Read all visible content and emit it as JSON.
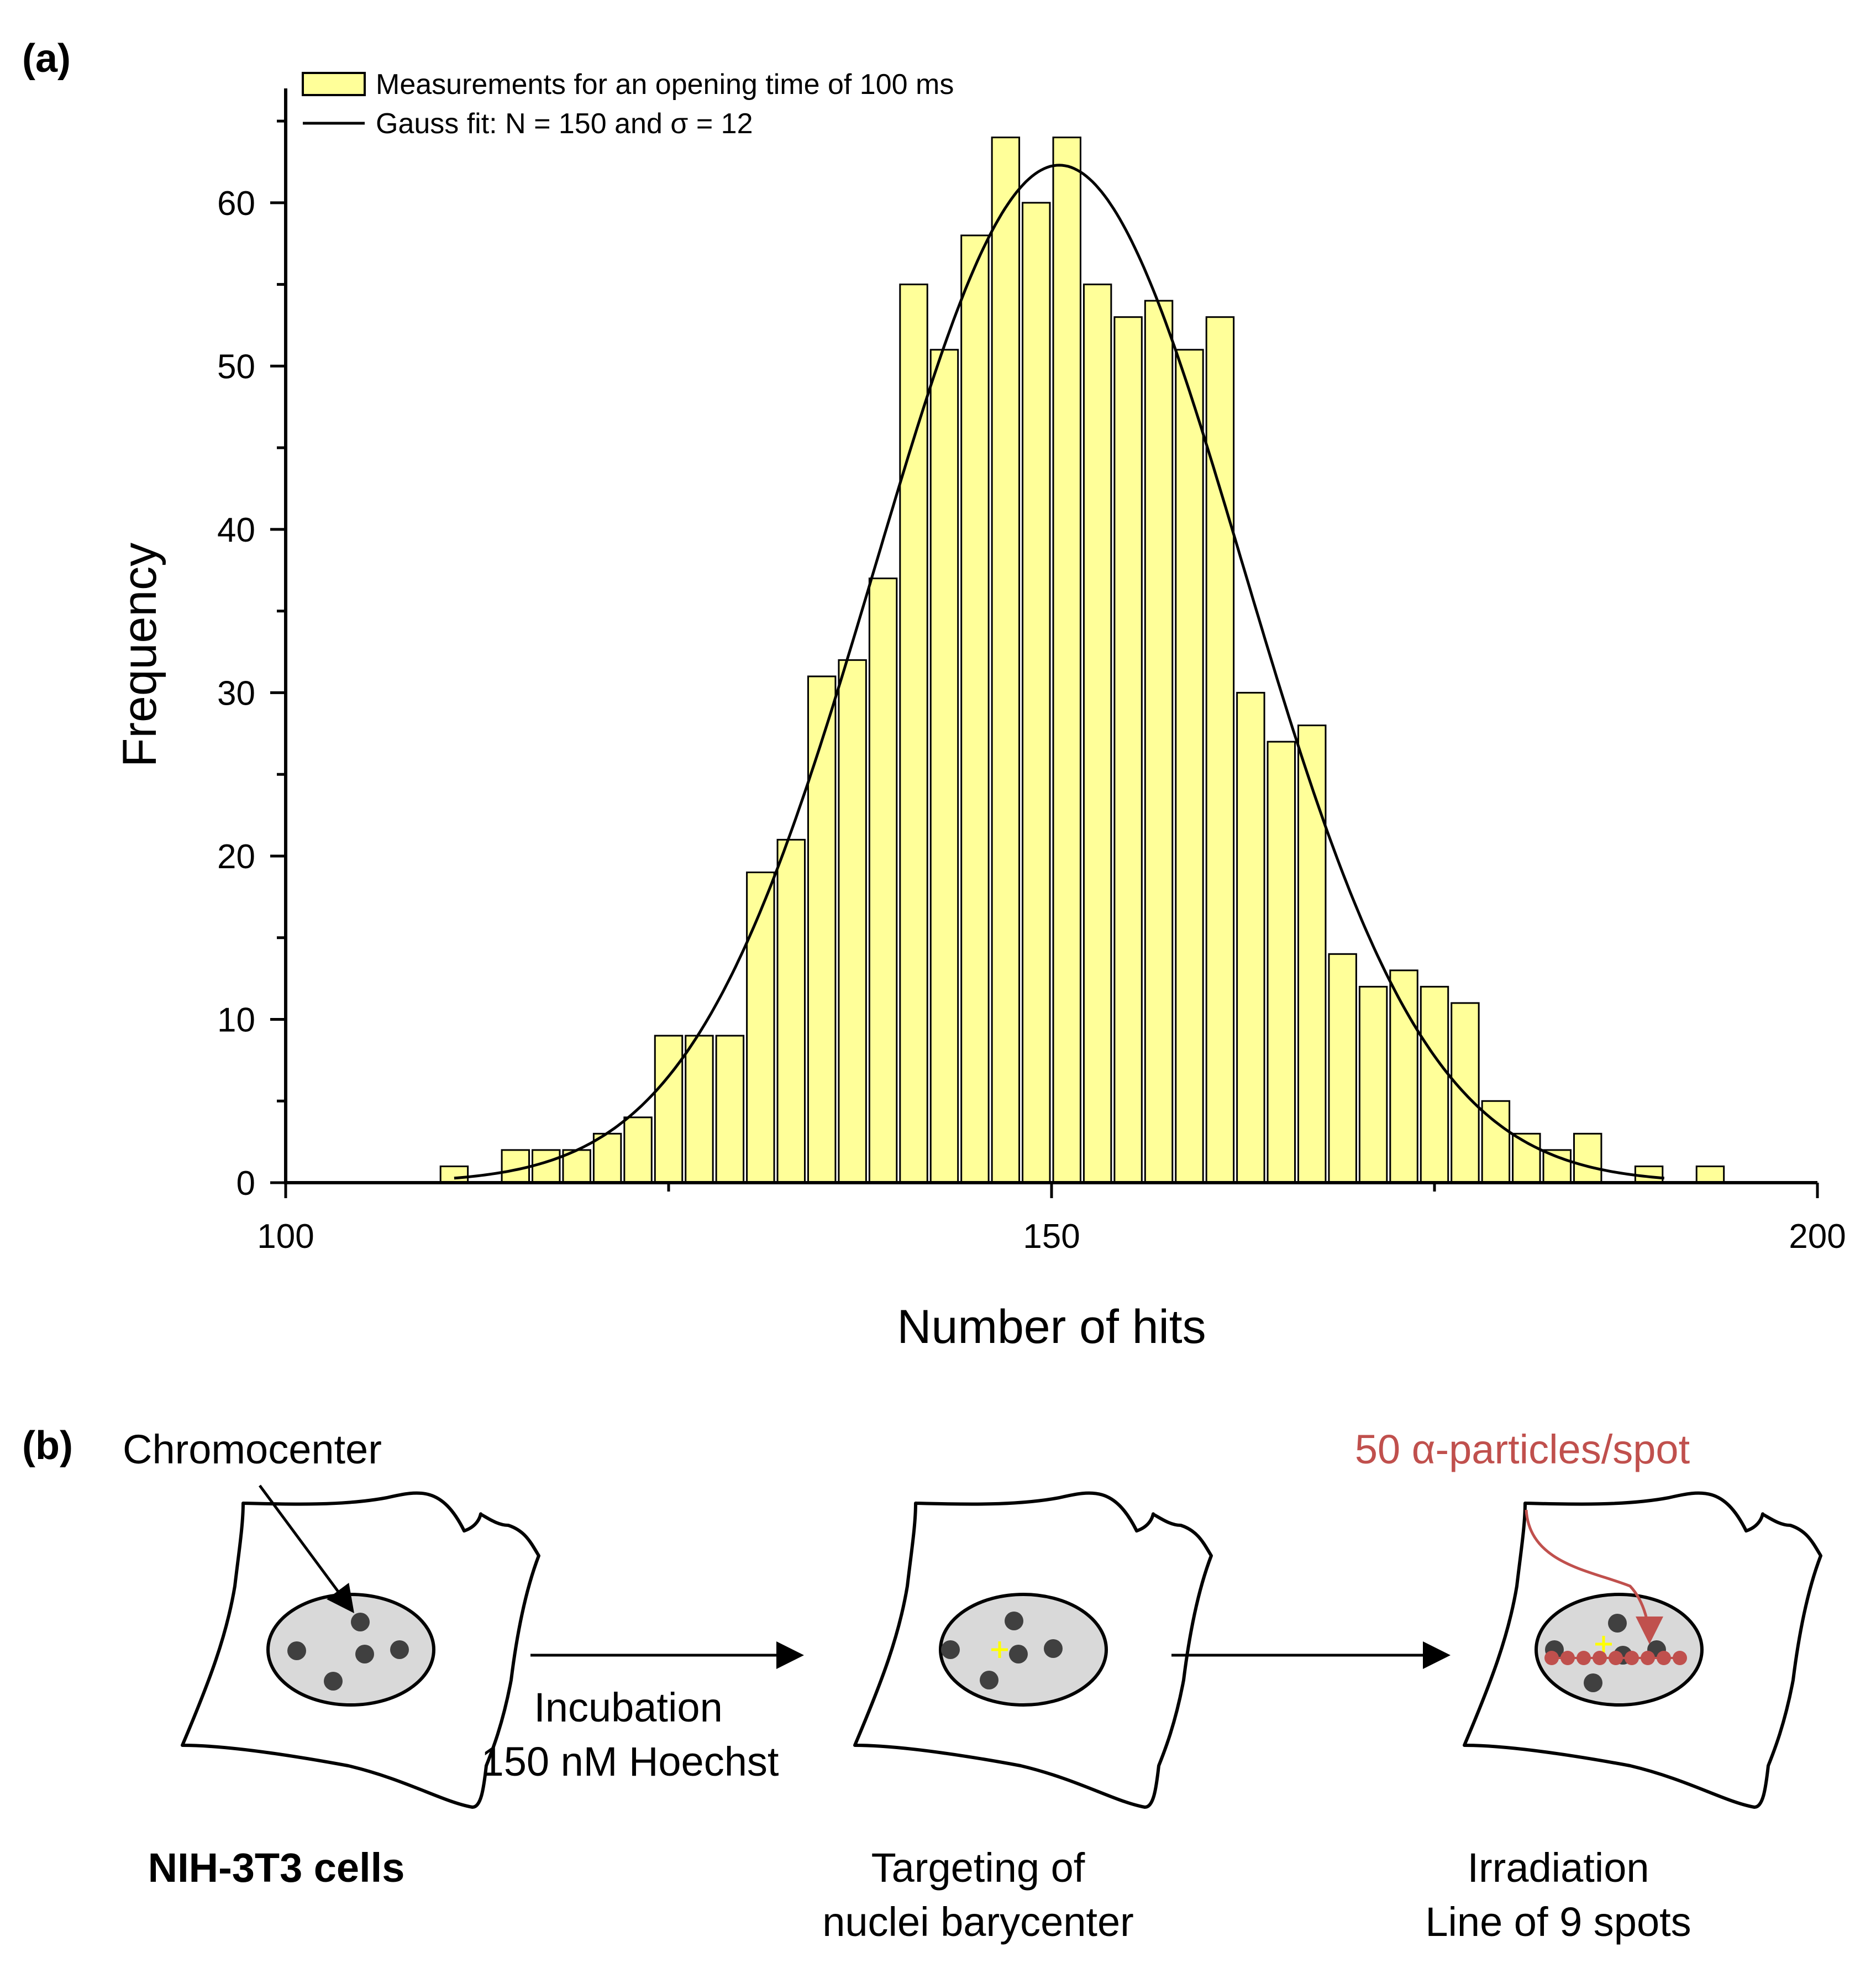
{
  "panel_a_label": "(a)",
  "panel_b_label": "(b)",
  "colors": {
    "bar_fill": "#FFFF99",
    "bar_stroke": "#000000",
    "fit_line": "#000000",
    "accent_red": "#C0504D",
    "target_cross": "#FFFF00",
    "nucleus_fill": "#D9D9D9",
    "chromocenter": "#404040"
  },
  "chart_data": {
    "type": "bar",
    "title": "",
    "xlabel": "Number of hits",
    "ylabel": "Frequency",
    "xlim": [
      100,
      200
    ],
    "ylim": [
      0,
      67
    ],
    "x_ticks": [
      100,
      150,
      200
    ],
    "y_ticks": [
      0,
      10,
      20,
      30,
      40,
      50,
      60
    ],
    "bin_width": 2,
    "legend": {
      "placement": "top-left",
      "bars_label": "Measurements for an opening time of 100 ms",
      "fit_label": "Gauss fit: N = 150 and σ = 12"
    },
    "bins": [
      {
        "x": 111,
        "value": 1
      },
      {
        "x": 115,
        "value": 2
      },
      {
        "x": 117,
        "value": 2
      },
      {
        "x": 119,
        "value": 2
      },
      {
        "x": 121,
        "value": 3
      },
      {
        "x": 123,
        "value": 4
      },
      {
        "x": 125,
        "value": 9
      },
      {
        "x": 127,
        "value": 9
      },
      {
        "x": 129,
        "value": 9
      },
      {
        "x": 131,
        "value": 19
      },
      {
        "x": 133,
        "value": 21
      },
      {
        "x": 135,
        "value": 31
      },
      {
        "x": 137,
        "value": 32
      },
      {
        "x": 139,
        "value": 37
      },
      {
        "x": 141,
        "value": 55
      },
      {
        "x": 143,
        "value": 51
      },
      {
        "x": 145,
        "value": 58
      },
      {
        "x": 147,
        "value": 64
      },
      {
        "x": 149,
        "value": 60
      },
      {
        "x": 151,
        "value": 64
      },
      {
        "x": 153,
        "value": 55
      },
      {
        "x": 155,
        "value": 53
      },
      {
        "x": 157,
        "value": 54
      },
      {
        "x": 159,
        "value": 51
      },
      {
        "x": 161,
        "value": 53
      },
      {
        "x": 163,
        "value": 30
      },
      {
        "x": 165,
        "value": 27
      },
      {
        "x": 167,
        "value": 28
      },
      {
        "x": 169,
        "value": 14
      },
      {
        "x": 171,
        "value": 12
      },
      {
        "x": 173,
        "value": 13
      },
      {
        "x": 175,
        "value": 12
      },
      {
        "x": 177,
        "value": 11
      },
      {
        "x": 179,
        "value": 5
      },
      {
        "x": 181,
        "value": 3
      },
      {
        "x": 183,
        "value": 2
      },
      {
        "x": 185,
        "value": 3
      },
      {
        "x": 189,
        "value": 1
      },
      {
        "x": 193,
        "value": 1
      }
    ],
    "fit": {
      "type": "gauss",
      "mean": 150.5,
      "sigma": 12,
      "amplitude": 62.3,
      "range": [
        111,
        190
      ]
    }
  },
  "diagram": {
    "chromocenter_label": "Chromocenter",
    "step1_label": "NIH-3T3 cells",
    "arrow1_line1": "Incubation",
    "arrow1_line2": "150 nM Hoechst",
    "step2_line1": "Targeting of",
    "step2_line2": "nuclei barycenter",
    "dose_label": "50 α-particles/spot",
    "step3_line1": "Irradiation",
    "step3_line2": "Line of 9 spots",
    "spot_count": 9
  }
}
